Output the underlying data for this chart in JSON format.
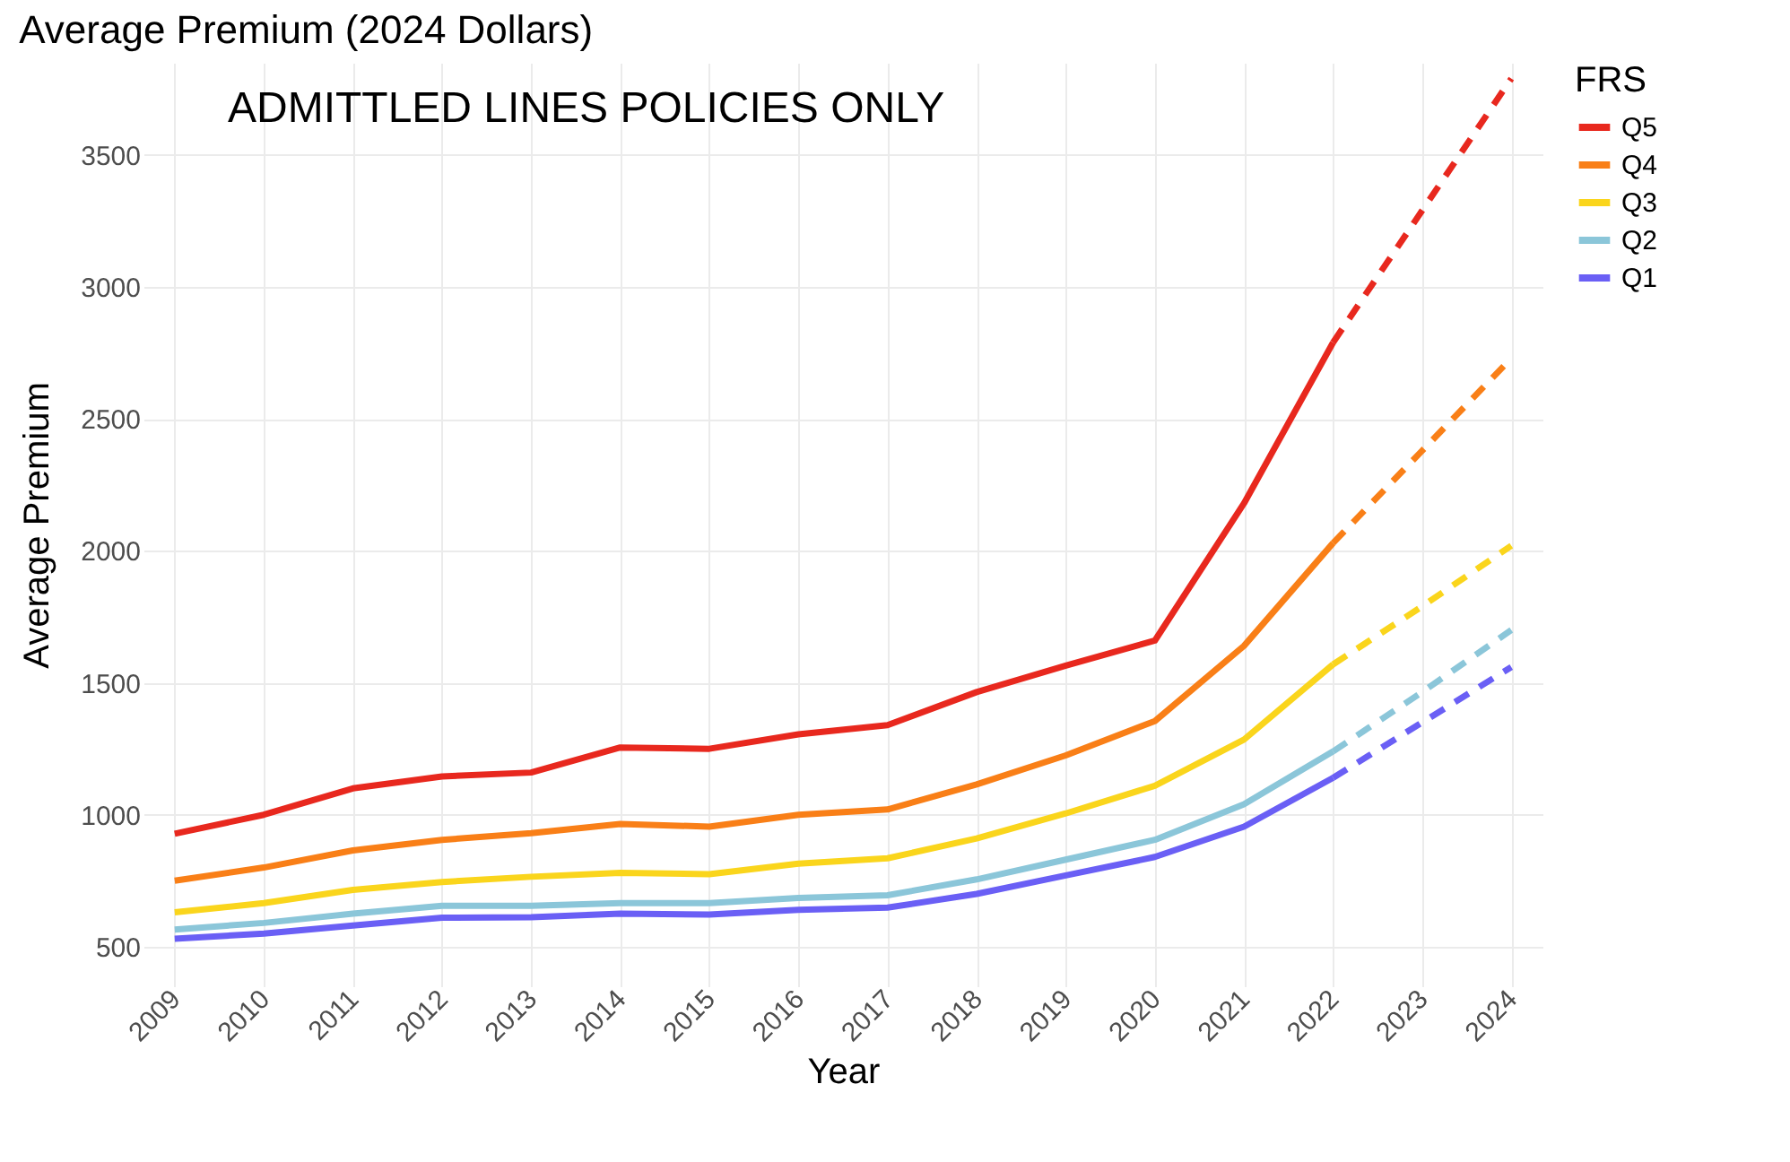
{
  "chart_data": {
    "type": "line",
    "title": "Average Premium (2024 Dollars)",
    "xlabel": "Year",
    "ylabel": "Average Premium",
    "legend_title": "FRS",
    "annotations": [
      "ADMITTLED LINES POLICIES ONLY"
    ],
    "categories": [
      "2009",
      "2010",
      "2011",
      "2012",
      "2013",
      "2014",
      "2015",
      "2016",
      "2017",
      "2018",
      "2019",
      "2020",
      "2021",
      "2022",
      "2023",
      "2024"
    ],
    "series": [
      {
        "name": "Q5",
        "color": "#e8281e",
        "line_style": "solid",
        "values": [
          928,
          1000,
          1100,
          1145,
          1160,
          1255,
          1250,
          1305,
          1340,
          1465,
          1565,
          1660,
          2180,
          2790,
          null,
          null
        ]
      },
      {
        "name": "Q4",
        "color": "#f97f17",
        "line_style": "solid",
        "values": [
          750,
          800,
          865,
          905,
          930,
          965,
          955,
          1000,
          1020,
          1115,
          1225,
          1355,
          1640,
          2030,
          null,
          null
        ]
      },
      {
        "name": "Q3",
        "color": "#fad51c",
        "line_style": "solid",
        "values": [
          630,
          665,
          715,
          745,
          765,
          780,
          775,
          815,
          835,
          910,
          1005,
          1110,
          1285,
          1570,
          null,
          null
        ]
      },
      {
        "name": "Q2",
        "color": "#8bc6d9",
        "line_style": "solid",
        "values": [
          565,
          590,
          625,
          655,
          655,
          665,
          665,
          685,
          695,
          755,
          830,
          905,
          1040,
          1240,
          null,
          null
        ]
      },
      {
        "name": "Q1",
        "color": "#6a5ff5",
        "line_style": "solid",
        "values": [
          530,
          550,
          580,
          610,
          612,
          625,
          622,
          640,
          648,
          700,
          770,
          840,
          955,
          1140,
          null,
          null
        ]
      },
      {
        "color": "#e8281e",
        "line_style": "dashed",
        "values": [
          null,
          null,
          null,
          null,
          null,
          null,
          null,
          null,
          null,
          null,
          null,
          null,
          null,
          2790,
          3290,
          3790
        ]
      },
      {
        "color": "#f97f17",
        "line_style": "dashed",
        "values": [
          null,
          null,
          null,
          null,
          null,
          null,
          null,
          null,
          null,
          null,
          null,
          null,
          null,
          2030,
          2380,
          2730
        ]
      },
      {
        "color": "#fad51c",
        "line_style": "dashed",
        "values": [
          null,
          null,
          null,
          null,
          null,
          null,
          null,
          null,
          null,
          null,
          null,
          null,
          null,
          1570,
          1790,
          2020
        ]
      },
      {
        "color": "#8bc6d9",
        "line_style": "dashed",
        "values": [
          null,
          null,
          null,
          null,
          null,
          null,
          null,
          null,
          null,
          null,
          null,
          null,
          null,
          1240,
          1465,
          1700
        ]
      },
      {
        "color": "#6a5ff5",
        "line_style": "dashed",
        "values": [
          null,
          null,
          null,
          null,
          null,
          null,
          null,
          null,
          null,
          null,
          null,
          null,
          null,
          1140,
          1350,
          1560
        ]
      }
    ],
    "ylim": [
      350,
      3850
    ],
    "yticks": [
      500,
      1000,
      1500,
      2000,
      2500,
      3000,
      3500
    ],
    "grid": true,
    "legend": "right"
  }
}
